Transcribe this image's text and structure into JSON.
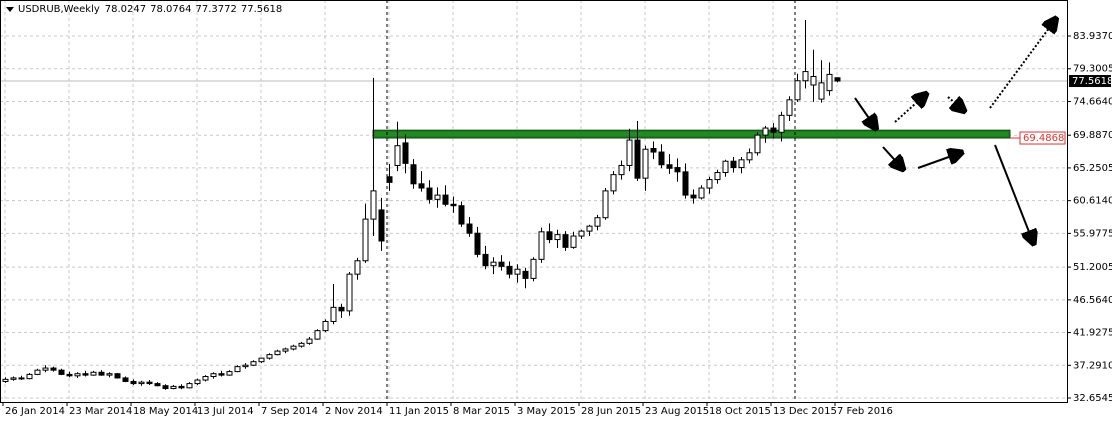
{
  "chart_data": {
    "type": "candlestick",
    "title": "USDRUB,Weekly",
    "x": [
      "26 Jan 2014",
      null,
      null,
      null,
      null,
      null,
      null,
      null,
      "23 Mar 2014",
      null,
      null,
      null,
      null,
      null,
      null,
      null,
      "18 May 2014",
      null,
      null,
      null,
      null,
      null,
      null,
      null,
      "13 Jul 2014",
      null,
      null,
      null,
      null,
      null,
      null,
      null,
      "7 Sep 2014",
      null,
      null,
      null,
      null,
      null,
      null,
      null,
      "2 Nov 2014",
      null,
      null,
      null,
      null,
      null,
      null,
      null,
      "11 Jan 2015",
      null,
      null,
      null,
      null,
      null,
      null,
      null,
      "8 Mar 2015",
      null,
      null,
      null,
      null,
      null,
      null,
      null,
      "3 May 2015",
      null,
      null,
      null,
      null,
      null,
      null,
      null,
      "28 Jun 2015",
      null,
      null,
      null,
      null,
      null,
      null,
      null,
      "23 Aug 2015",
      null,
      null,
      null,
      null,
      null,
      null,
      null,
      "18 Oct 2015",
      null,
      null,
      null,
      null,
      null,
      null,
      null,
      "13 Dec 2015",
      null,
      null,
      null,
      null,
      null,
      null,
      null,
      "7 Feb 2016"
    ],
    "open": [
      35.0,
      35.3,
      35.5,
      35.4,
      36.0,
      36.6,
      36.9,
      36.6,
      36.0,
      35.8,
      36.1,
      35.9,
      36.3,
      35.9,
      36.1,
      35.5,
      35.0,
      34.7,
      34.9,
      34.7,
      34.4,
      34.0,
      34.3,
      34.1,
      34.7,
      35.2,
      35.7,
      36.1,
      35.9,
      36.4,
      37.1,
      37.3,
      37.8,
      38.3,
      38.8,
      39.3,
      39.6,
      40.0,
      40.4,
      41.0,
      42.2,
      43.5,
      45.5,
      45.0,
      50.2,
      52.1,
      58.0,
      59.3,
      64.0,
      65.6,
      68.8,
      65.7,
      63.0,
      62.4,
      60.8,
      61.4,
      60.1,
      59.9,
      57.3,
      56.0,
      53.0,
      51.4,
      51.9,
      51.3,
      50.2,
      50.6,
      49.6,
      52.3,
      56.2,
      55.1,
      55.8,
      54.0,
      55.6,
      56.3,
      57.0,
      58.2,
      62.0,
      64.3,
      65.6,
      69.2,
      63.8,
      68.0,
      67.5,
      65.7,
      65.3,
      64.7,
      61.4,
      61.0,
      62.4,
      63.6,
      64.6,
      66.2,
      65.3,
      66.4,
      67.4,
      69.9,
      70.9,
      70.3,
      72.7,
      74.9,
      77.6,
      77.0,
      75.0,
      76.2,
      78.0247
    ],
    "high": [
      35.6,
      35.7,
      35.8,
      36.2,
      36.8,
      37.3,
      37.1,
      36.8,
      36.4,
      36.3,
      36.5,
      36.5,
      36.6,
      36.3,
      36.2,
      35.7,
      35.3,
      35.1,
      35.2,
      34.9,
      34.6,
      34.5,
      34.6,
      34.9,
      35.4,
      35.9,
      36.3,
      36.5,
      36.6,
      37.3,
      37.6,
      38.0,
      38.4,
      39.0,
      39.5,
      39.8,
      40.2,
      40.6,
      41.3,
      42.4,
      43.8,
      48.8,
      46.0,
      50.5,
      52.5,
      60.2,
      78.0,
      61.0,
      65.8,
      71.8,
      70.0,
      66.5,
      64.8,
      63.5,
      62.5,
      62.8,
      61.2,
      60.5,
      58.3,
      56.9,
      54.2,
      52.6,
      52.9,
      52.0,
      51.6,
      51.1,
      52.6,
      56.8,
      57.4,
      56.5,
      56.3,
      56.2,
      56.5,
      57.2,
      58.6,
      62.4,
      64.8,
      66.3,
      70.8,
      71.9,
      68.4,
      69.0,
      68.6,
      67.2,
      66.6,
      65.9,
      62.2,
      62.8,
      64.0,
      65.0,
      66.4,
      66.8,
      66.8,
      68.0,
      70.3,
      71.2,
      71.6,
      73.2,
      75.4,
      78.6,
      86.2,
      82.0,
      80.5,
      80.2,
      78.0764
    ],
    "low": [
      34.8,
      35.1,
      35.2,
      35.3,
      35.9,
      36.3,
      36.4,
      35.9,
      35.6,
      35.5,
      35.7,
      35.8,
      35.8,
      35.6,
      35.4,
      34.9,
      34.5,
      34.4,
      34.5,
      34.3,
      33.8,
      33.9,
      33.9,
      34.0,
      34.5,
      35.0,
      35.4,
      35.7,
      35.8,
      36.3,
      36.8,
      37.2,
      37.6,
      38.1,
      38.7,
      39.0,
      39.4,
      39.8,
      40.2,
      40.9,
      42.0,
      43.1,
      44.0,
      44.3,
      49.4,
      51.8,
      55.6,
      53.5,
      62.0,
      64.8,
      64.5,
      62.3,
      61.9,
      60.2,
      59.6,
      59.8,
      58.9,
      56.9,
      55.5,
      52.6,
      50.9,
      50.2,
      50.7,
      49.6,
      49.0,
      48.2,
      49.2,
      51.8,
      54.6,
      53.9,
      53.5,
      53.8,
      55.2,
      55.6,
      56.4,
      57.9,
      61.5,
      63.6,
      64.8,
      63.4,
      62.0,
      66.5,
      65.2,
      64.4,
      63.3,
      60.9,
      60.2,
      60.8,
      61.6,
      63.0,
      64.0,
      64.6,
      64.5,
      65.9,
      67.0,
      68.8,
      69.4,
      69.0,
      71.9,
      74.6,
      76.5,
      74.6,
      74.5,
      75.5,
      77.3772
    ],
    "close": [
      35.3,
      35.5,
      35.4,
      36.0,
      36.6,
      36.9,
      36.6,
      36.0,
      35.8,
      36.1,
      35.9,
      36.3,
      35.9,
      36.1,
      35.5,
      35.0,
      34.7,
      34.9,
      34.7,
      34.4,
      34.0,
      34.3,
      34.1,
      34.7,
      35.2,
      35.7,
      36.1,
      35.9,
      36.4,
      37.1,
      37.3,
      37.8,
      38.3,
      38.8,
      39.3,
      39.6,
      40.0,
      40.4,
      41.0,
      42.2,
      43.5,
      45.5,
      45.0,
      50.2,
      52.1,
      58.0,
      62.0,
      54.9,
      63.2,
      68.4,
      65.9,
      63.0,
      62.4,
      60.8,
      61.4,
      60.1,
      59.9,
      57.3,
      56.0,
      53.0,
      51.4,
      51.9,
      51.3,
      50.2,
      50.9,
      49.6,
      52.3,
      56.2,
      55.1,
      55.8,
      54.0,
      55.6,
      56.3,
      57.0,
      58.2,
      62.0,
      64.3,
      65.6,
      69.2,
      63.8,
      67.9,
      67.5,
      65.7,
      65.2,
      64.7,
      61.4,
      61.0,
      62.4,
      63.6,
      64.6,
      66.2,
      65.3,
      66.4,
      67.4,
      69.9,
      70.9,
      70.3,
      72.7,
      74.9,
      77.6,
      78.9,
      78.2,
      77.3,
      78.5,
      77.5618
    ],
    "ylim": [
      32.09,
      89.04
    ],
    "yticks": [
      32.6545,
      {
        "value": 37.291,
        "label": "37.2910"
      },
      41.9275,
      {
        "value": 46.564,
        "label": "46.5640"
      },
      51.2005,
      55.9775,
      {
        "value": 60.614,
        "label": "60.6140"
      },
      65.2505,
      {
        "value": 69.887,
        "label": "69.8870"
      },
      {
        "value": 74.664,
        "label": "74.6640"
      },
      79.3005,
      {
        "value": 83.937,
        "label": "83.9370"
      }
    ],
    "grid": true,
    "zone": {
      "low": 69.4868,
      "high": 70.6,
      "color": "#1e7b1e"
    }
  }
}
